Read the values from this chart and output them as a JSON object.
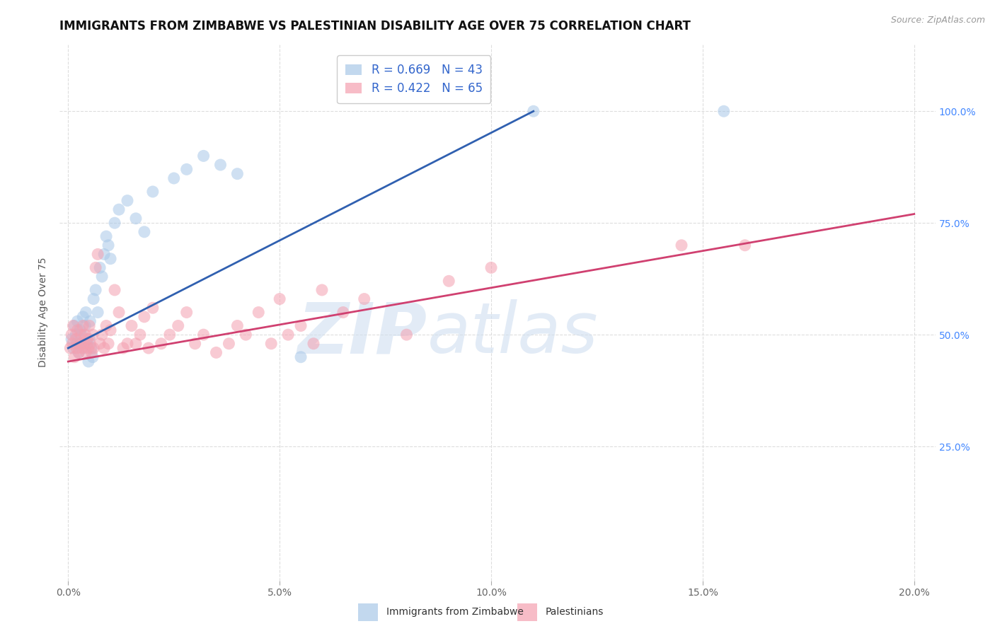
{
  "title": "IMMIGRANTS FROM ZIMBABWE VS PALESTINIAN DISABILITY AGE OVER 75 CORRELATION CHART",
  "source": "Source: ZipAtlas.com",
  "ylabel": "Disability Age Over 75",
  "x_tick_values": [
    0.0,
    5.0,
    10.0,
    15.0,
    20.0
  ],
  "y_tick_values": [
    25.0,
    50.0,
    75.0,
    100.0
  ],
  "xlim": [
    -0.2,
    20.5
  ],
  "ylim": [
    -5.0,
    115.0
  ],
  "legend_label1": "Immigrants from Zimbabwe",
  "legend_label2": "Palestinians",
  "blue_color": "#a8c8e8",
  "pink_color": "#f4a0b0",
  "trend_blue": "#3060b0",
  "trend_pink": "#d04070",
  "watermark_zip": "ZIP",
  "watermark_atlas": "atlas",
  "background_color": "#ffffff",
  "grid_color": "#dddddd",
  "title_fontsize": 12,
  "axis_label_fontsize": 10,
  "tick_fontsize": 10,
  "legend_fontsize": 12,
  "blue_R": "0.669",
  "blue_N": "43",
  "pink_R": "0.422",
  "pink_N": "65",
  "blue_scatter_x": [
    0.08,
    0.12,
    0.15,
    0.18,
    0.2,
    0.22,
    0.25,
    0.28,
    0.3,
    0.32,
    0.35,
    0.38,
    0.4,
    0.42,
    0.45,
    0.48,
    0.5,
    0.52,
    0.55,
    0.58,
    0.6,
    0.65,
    0.7,
    0.75,
    0.8,
    0.85,
    0.9,
    0.95,
    1.0,
    1.1,
    1.2,
    1.4,
    1.6,
    1.8,
    2.0,
    2.5,
    2.8,
    3.2,
    3.6,
    4.0,
    5.5,
    11.0,
    15.5
  ],
  "blue_scatter_y": [
    49.0,
    47.0,
    52.0,
    50.0,
    48.0,
    53.0,
    46.0,
    51.0,
    48.0,
    50.0,
    54.0,
    47.0,
    52.0,
    55.0,
    48.0,
    44.0,
    49.0,
    53.0,
    47.0,
    45.0,
    58.0,
    60.0,
    55.0,
    65.0,
    63.0,
    68.0,
    72.0,
    70.0,
    67.0,
    75.0,
    78.0,
    80.0,
    76.0,
    73.0,
    82.0,
    85.0,
    87.0,
    90.0,
    88.0,
    86.0,
    45.0,
    100.0,
    100.0
  ],
  "pink_scatter_x": [
    0.05,
    0.08,
    0.1,
    0.12,
    0.15,
    0.18,
    0.2,
    0.22,
    0.25,
    0.28,
    0.3,
    0.32,
    0.35,
    0.38,
    0.4,
    0.42,
    0.45,
    0.48,
    0.5,
    0.52,
    0.55,
    0.58,
    0.6,
    0.65,
    0.7,
    0.75,
    0.8,
    0.85,
    0.9,
    0.95,
    1.0,
    1.1,
    1.2,
    1.3,
    1.4,
    1.5,
    1.6,
    1.7,
    1.8,
    1.9,
    2.0,
    2.2,
    2.4,
    2.6,
    2.8,
    3.0,
    3.2,
    3.5,
    3.8,
    4.0,
    4.2,
    4.5,
    4.8,
    5.0,
    5.2,
    5.5,
    5.8,
    6.0,
    6.5,
    7.0,
    8.0,
    9.0,
    10.0,
    14.5,
    16.0
  ],
  "pink_scatter_y": [
    47.0,
    50.0,
    48.0,
    52.0,
    45.0,
    49.0,
    47.0,
    51.0,
    46.0,
    48.0,
    50.0,
    47.0,
    52.0,
    48.0,
    50.0,
    46.0,
    49.0,
    47.0,
    52.0,
    48.0,
    46.0,
    50.0,
    47.0,
    65.0,
    68.0,
    48.0,
    50.0,
    47.0,
    52.0,
    48.0,
    51.0,
    60.0,
    55.0,
    47.0,
    48.0,
    52.0,
    48.0,
    50.0,
    54.0,
    47.0,
    56.0,
    48.0,
    50.0,
    52.0,
    55.0,
    48.0,
    50.0,
    46.0,
    48.0,
    52.0,
    50.0,
    55.0,
    48.0,
    58.0,
    50.0,
    52.0,
    48.0,
    60.0,
    55.0,
    58.0,
    50.0,
    62.0,
    65.0,
    70.0,
    70.0
  ],
  "blue_trendline_x0": 0.0,
  "blue_trendline_y0": 47.0,
  "blue_trendline_x1": 11.0,
  "blue_trendline_y1": 100.0,
  "pink_trendline_x0": 0.0,
  "pink_trendline_y0": 44.0,
  "pink_trendline_x1": 20.0,
  "pink_trendline_y1": 77.0
}
